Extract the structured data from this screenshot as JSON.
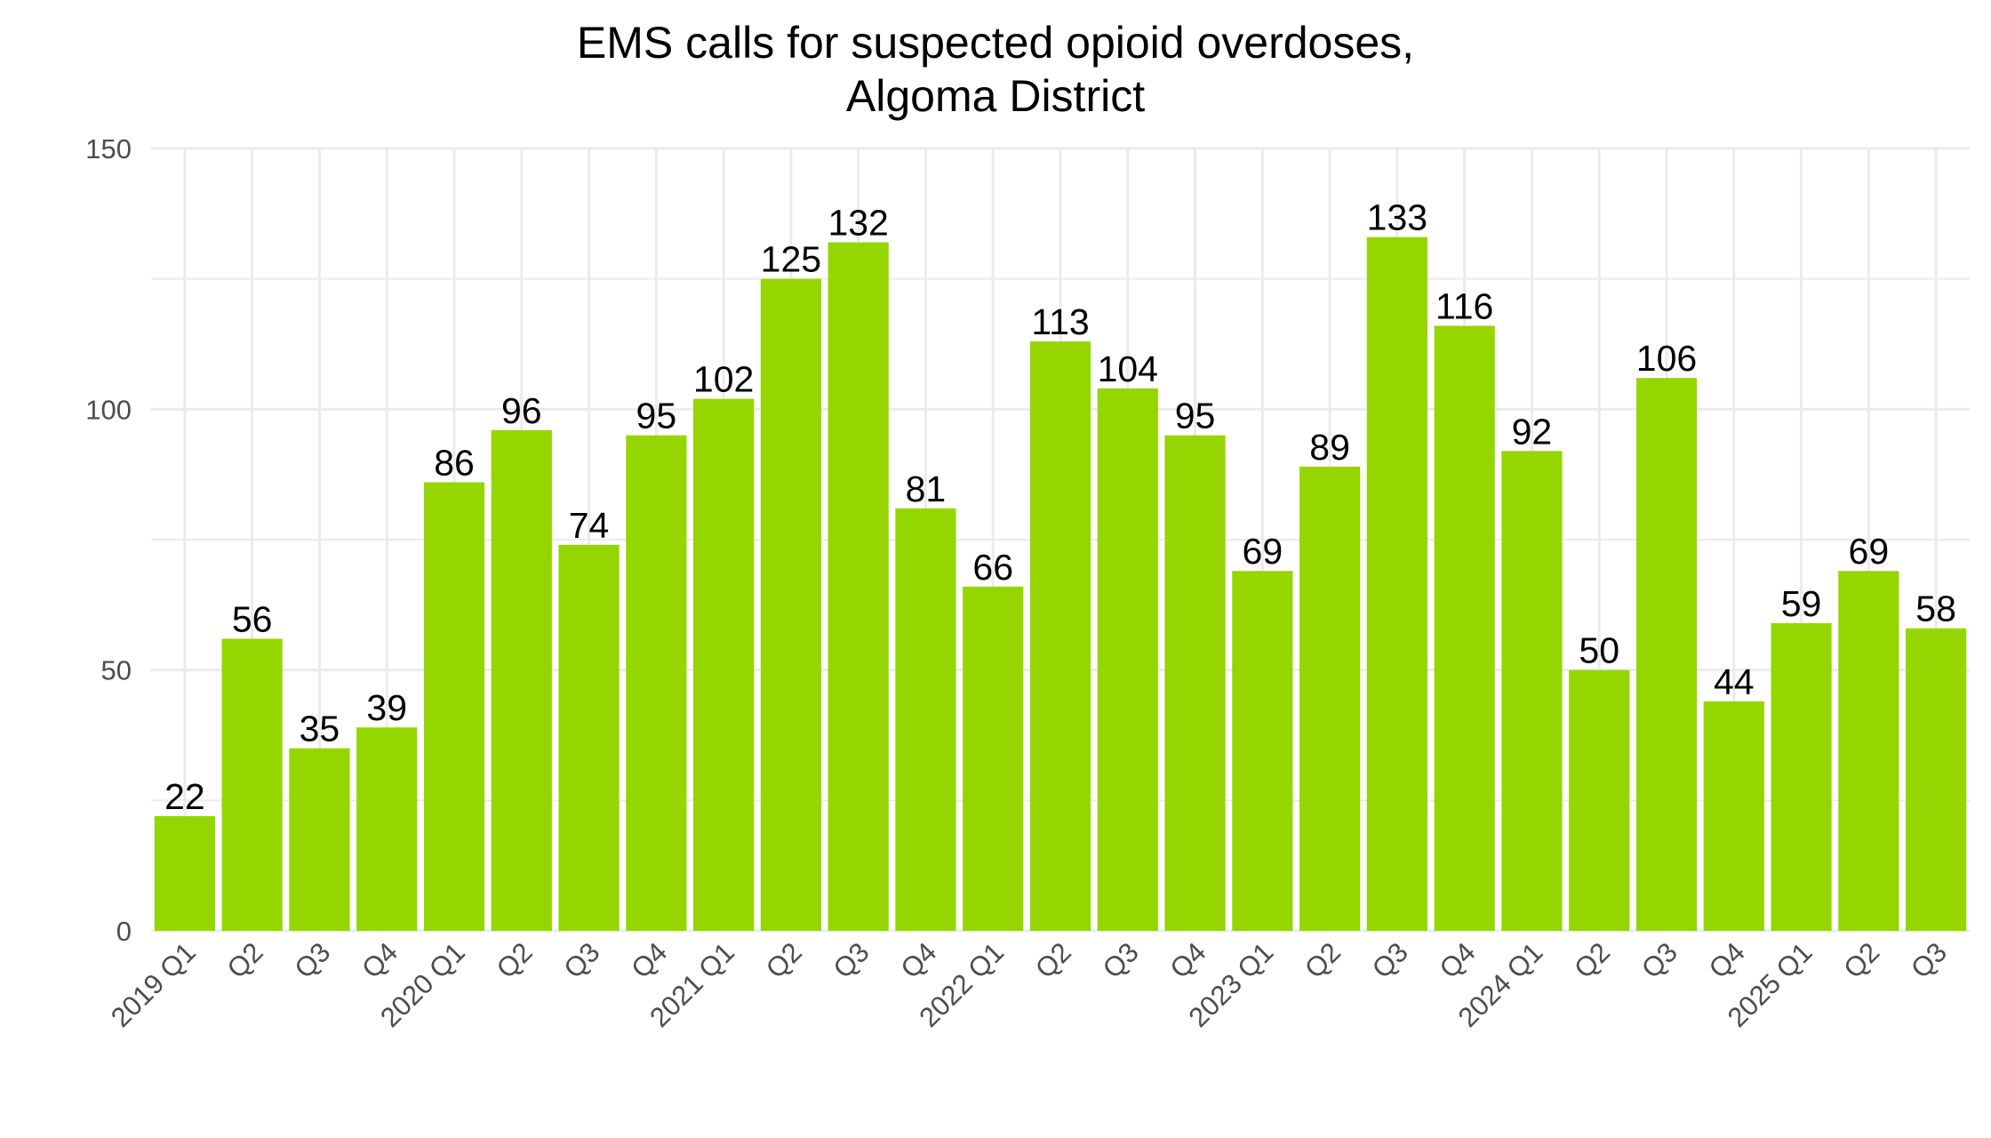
{
  "chart_data": {
    "type": "bar",
    "title_lines": [
      "EMS calls for suspected opioid overdoses,",
      "Algoma District"
    ],
    "xlabel": "",
    "ylabel": "",
    "ylim": [
      0,
      150
    ],
    "yticks": [
      0,
      50,
      100,
      150
    ],
    "grid": true,
    "legend": "none",
    "bar_color": "#95D600",
    "categories": [
      "2019 Q1",
      "Q2",
      "Q3",
      "Q4",
      "2020 Q1",
      "Q2",
      "Q3",
      "Q4",
      "2021 Q1",
      "Q2",
      "Q3",
      "Q4",
      "2022 Q1",
      "Q2",
      "Q3",
      "Q4",
      "2023 Q1",
      "Q2",
      "Q3",
      "Q4",
      "2024 Q1",
      "Q2",
      "Q3",
      "Q4",
      "2025 Q1",
      "Q2",
      "Q3"
    ],
    "values": [
      22,
      56,
      35,
      39,
      86,
      96,
      74,
      95,
      102,
      125,
      132,
      81,
      66,
      113,
      104,
      95,
      69,
      89,
      133,
      116,
      92,
      50,
      106,
      44,
      59,
      69,
      58
    ]
  }
}
